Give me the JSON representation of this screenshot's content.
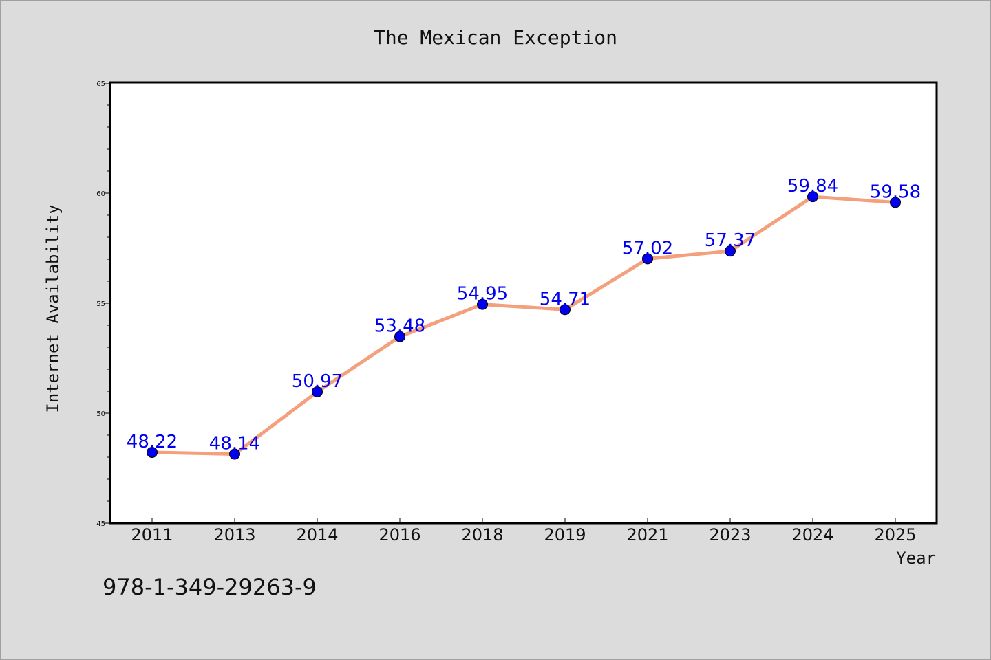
{
  "chart_data": {
    "type": "line",
    "title": "The Mexican Exception",
    "xlabel": "Year",
    "ylabel": "Internet Availability",
    "categories": [
      "2011",
      "2013",
      "2014",
      "2016",
      "2018",
      "2019",
      "2021",
      "2023",
      "2024",
      "2025"
    ],
    "series": [
      {
        "values": [
          48.22,
          48.14,
          50.97,
          53.48,
          54.95,
          54.71,
          57.02,
          57.37,
          59.84,
          59.58
        ],
        "line_color": "#f4a07c",
        "marker_color": "#0000ee"
      }
    ],
    "data_labels": [
      "48.22",
      "48.14",
      "50.97",
      "53.48",
      "54.95",
      "54.71",
      "57.02",
      "57.37",
      "59.84",
      "59.58"
    ],
    "ylim": [
      45,
      65
    ],
    "yticks": [
      45,
      50,
      55,
      60,
      65
    ],
    "grid": false,
    "legend": "none",
    "data_label_color": "#0000ee"
  },
  "footer": {
    "isbn": "978-1-349-29263-9"
  }
}
